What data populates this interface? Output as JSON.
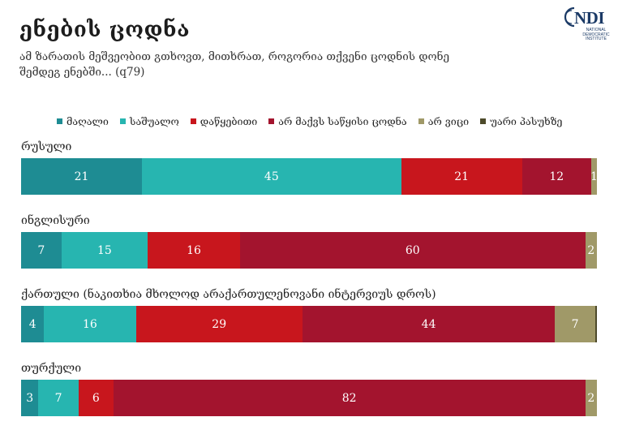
{
  "title": "ენების ცოდნა",
  "subtitle": "ამ ზარათის მეშვეობით გთხოვთ, მითხრათ, როგორია თქვენი ცოდნის დონე შემდეგ ენებში... (q79)",
  "logo": {
    "text": "NDI",
    "sub": "NATIONAL DEMOCRATIC INSTITUTE"
  },
  "colors": [
    "#1e8c93",
    "#27b5b0",
    "#c8161d",
    "#a3142e",
    "#a09968",
    "#4d4a2a"
  ],
  "chart_data": {
    "type": "bar",
    "orientation": "horizontal-stacked",
    "legend_position": "top",
    "legend": [
      "მაღალი",
      "საშუალო",
      "დაწყებითი",
      "არ მაქვს საწყისი ცოდნა",
      "არ ვიცი",
      "უარი პასუხზე"
    ],
    "categories": [
      {
        "label": "რუსული",
        "values": [
          21,
          45,
          21,
          12,
          1,
          0
        ],
        "labels": [
          "21",
          "45",
          "21",
          "12",
          "1",
          ""
        ]
      },
      {
        "label": "ინგლისური",
        "values": [
          7,
          15,
          16,
          60,
          2,
          0
        ],
        "labels": [
          "7",
          "15",
          "16",
          "60",
          "2",
          ""
        ]
      },
      {
        "label": "ქართული (ნაკითხია მხოლოდ არაქართულენოვანი ინტერვიუს დროს)",
        "values": [
          4,
          16,
          29,
          44,
          7,
          0.3
        ],
        "labels": [
          "4",
          "16",
          "29",
          "44",
          "7",
          ""
        ]
      },
      {
        "label": "თურქული",
        "values": [
          3,
          7,
          6,
          82,
          2,
          0
        ],
        "labels": [
          "3",
          "7",
          "6",
          "82",
          "2",
          ""
        ]
      }
    ]
  }
}
